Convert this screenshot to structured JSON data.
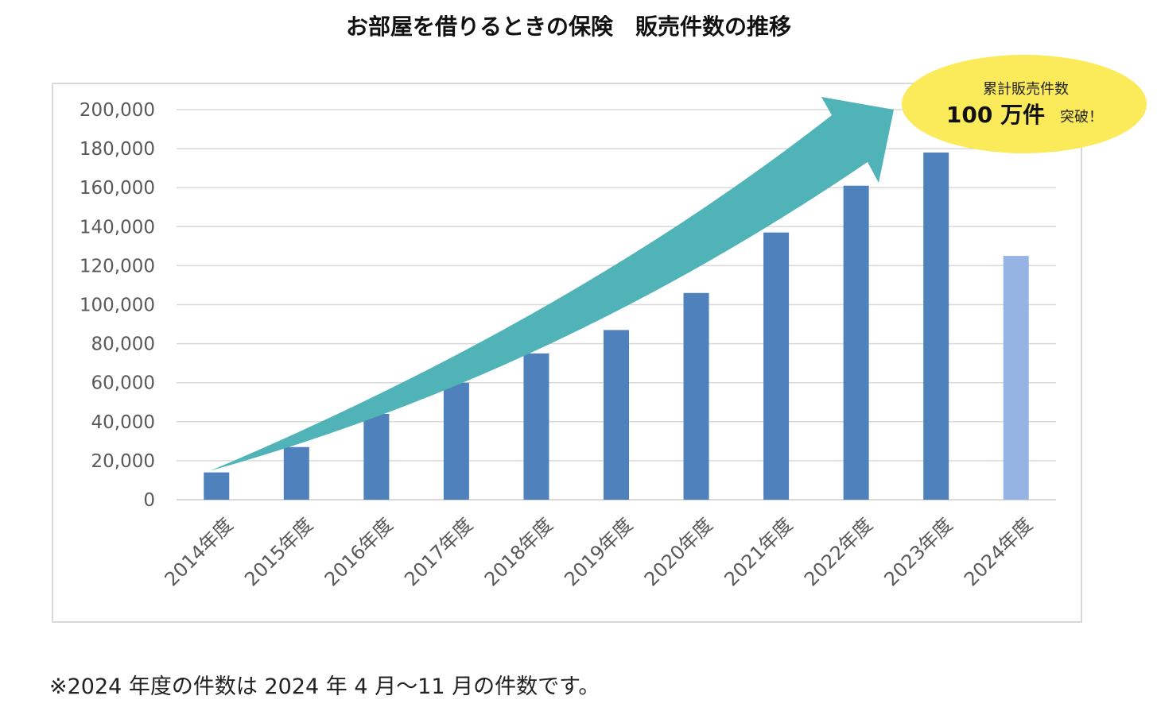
{
  "chart_data": {
    "type": "bar",
    "title": "お部屋を借りるときの保険　販売件数の推移",
    "categories": [
      "2014年度",
      "2015年度",
      "2016年度",
      "2017年度",
      "2018年度",
      "2019年度",
      "2020年度",
      "2021年度",
      "2022年度",
      "2023年度",
      "2024年度"
    ],
    "values": [
      14000,
      27000,
      44000,
      60000,
      75000,
      87000,
      106000,
      137000,
      161000,
      178000,
      125000
    ],
    "partial_year_index": 10,
    "ylim": [
      0,
      200000
    ],
    "yticks": [
      0,
      20000,
      40000,
      60000,
      80000,
      100000,
      120000,
      140000,
      160000,
      180000,
      200000
    ],
    "ytick_labels": [
      "0",
      "20,000",
      "40,000",
      "60,000",
      "80,000",
      "100,000",
      "120,000",
      "140,000",
      "160,000",
      "180,000",
      "200,000"
    ],
    "grid": true,
    "xlabel": "",
    "ylabel": "",
    "annotation": {
      "line1": "累計販売件数",
      "big": "100 万件",
      "small": "突破！"
    }
  },
  "colors": {
    "bar": "#4f81bd",
    "bar_partial": "#95b3e3",
    "arrow": "#4fb3b8",
    "callout": "#fbea59",
    "grid": "#d9d9d9"
  },
  "footnote": "※2024 年度の件数は 2024 年 4 月～11 月の件数です。"
}
